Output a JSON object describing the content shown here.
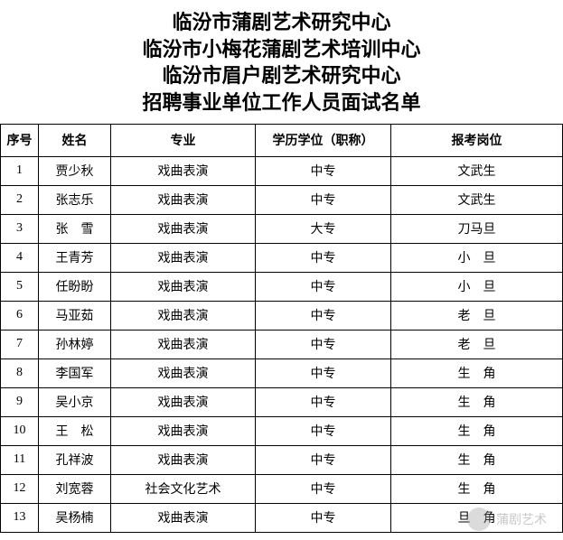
{
  "titles": {
    "line1": "临汾市蒲剧艺术研究中心",
    "line2": "临汾市小梅花蒲剧艺术培训中心",
    "line3": "临汾市眉户剧艺术研究中心",
    "line4": "招聘事业单位工作人员面试名单"
  },
  "columns": {
    "seq": "序号",
    "name": "姓名",
    "major": "专业",
    "edu": "学历学位（职称）",
    "position": "报考岗位"
  },
  "rows": [
    {
      "seq": "1",
      "name": "贾少秋",
      "major": "戏曲表演",
      "edu": "中专",
      "position": "文武生"
    },
    {
      "seq": "2",
      "name": "张志乐",
      "major": "戏曲表演",
      "edu": "中专",
      "position": "文武生"
    },
    {
      "seq": "3",
      "name": "张　雪",
      "major": "戏曲表演",
      "edu": "大专",
      "position": "刀马旦"
    },
    {
      "seq": "4",
      "name": "王青芳",
      "major": "戏曲表演",
      "edu": "中专",
      "position": "小　旦"
    },
    {
      "seq": "5",
      "name": "任盼盼",
      "major": "戏曲表演",
      "edu": "中专",
      "position": "小　旦"
    },
    {
      "seq": "6",
      "name": "马亚茹",
      "major": "戏曲表演",
      "edu": "中专",
      "position": "老　旦"
    },
    {
      "seq": "7",
      "name": "孙林婷",
      "major": "戏曲表演",
      "edu": "中专",
      "position": "老　旦"
    },
    {
      "seq": "8",
      "name": "李国军",
      "major": "戏曲表演",
      "edu": "中专",
      "position": "生　角"
    },
    {
      "seq": "9",
      "name": "吴小京",
      "major": "戏曲表演",
      "edu": "中专",
      "position": "生　角"
    },
    {
      "seq": "10",
      "name": "王　松",
      "major": "戏曲表演",
      "edu": "中专",
      "position": "生　角"
    },
    {
      "seq": "11",
      "name": "孔祥波",
      "major": "戏曲表演",
      "edu": "中专",
      "position": "生　角"
    },
    {
      "seq": "12",
      "name": "刘宽蓉",
      "major": "社会文化艺术",
      "edu": "中专",
      "position": "生　角"
    },
    {
      "seq": "13",
      "name": "吴杨楠",
      "major": "戏曲表演",
      "edu": "中专",
      "position": "旦　角"
    }
  ],
  "watermark": {
    "text": "蒲剧艺术"
  }
}
